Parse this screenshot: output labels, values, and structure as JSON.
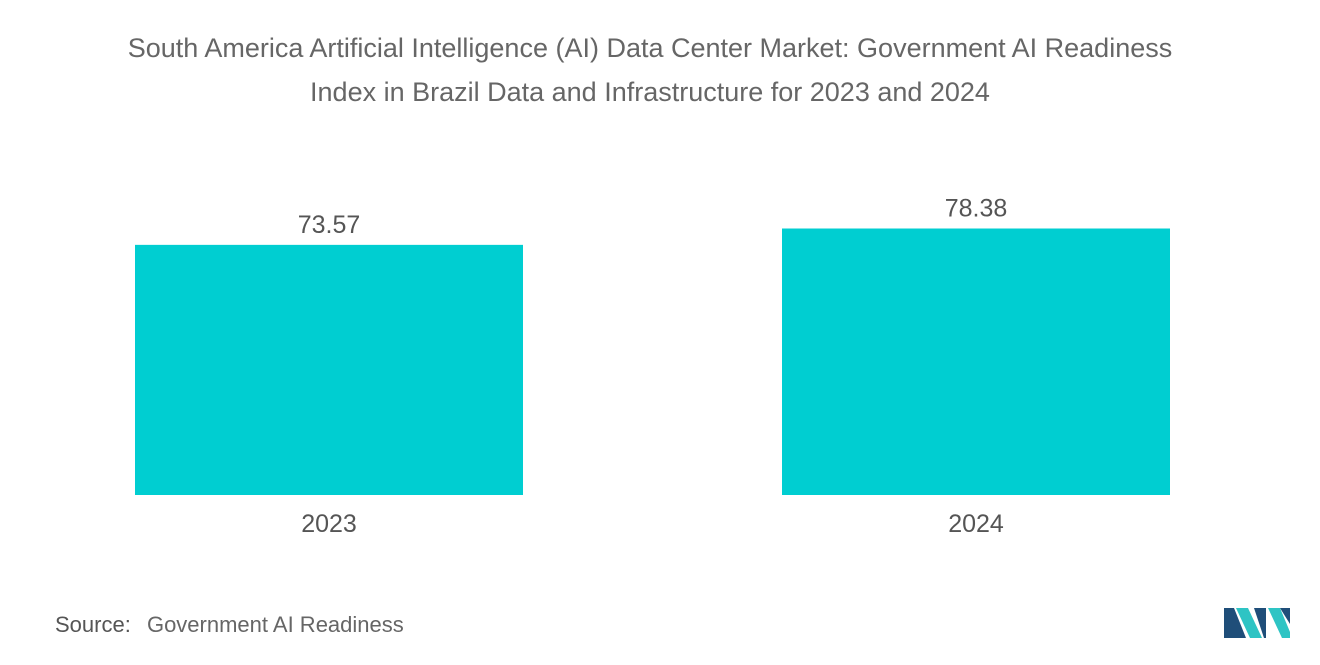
{
  "title_line1": "South America Artificial Intelligence (AI) Data Center Market: Government AI Readiness",
  "title_line2": "Index in Brazil Data and Infrastructure for 2023 and 2024",
  "source": {
    "label": "Source:",
    "text": "Government AI Readiness"
  },
  "colors": {
    "bar": "#00CED1",
    "text": "#555555"
  },
  "chart_data": {
    "type": "bar",
    "title": "South America Artificial Intelligence (AI) Data Center Market: Government AI Readiness Index in Brazil Data and Infrastructure for 2023 and 2024",
    "categories": [
      "2023",
      "2024"
    ],
    "values": [
      73.57,
      78.38
    ],
    "value_labels": [
      "73.57",
      "78.38"
    ],
    "xlabel": "",
    "ylabel": "",
    "ylim": [
      0,
      100
    ],
    "grid": false,
    "legend": "none"
  }
}
